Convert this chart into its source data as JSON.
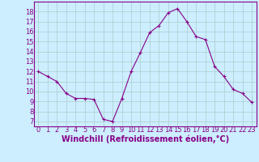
{
  "x": [
    0,
    1,
    2,
    3,
    4,
    5,
    6,
    7,
    8,
    9,
    10,
    11,
    12,
    13,
    14,
    15,
    16,
    17,
    18,
    19,
    20,
    21,
    22,
    23
  ],
  "y": [
    12,
    11.5,
    11,
    9.8,
    9.3,
    9.3,
    9.2,
    7.2,
    7.0,
    9.3,
    12.0,
    13.9,
    15.9,
    16.6,
    17.9,
    18.3,
    17.0,
    15.5,
    15.2,
    12.5,
    11.5,
    10.2,
    9.8,
    8.9
  ],
  "line_color": "#880088",
  "marker": "+",
  "marker_color": "#880088",
  "bg_color": "#cceeff",
  "grid_color": "#aacccc",
  "xlabel": "Windchill (Refroidissement éolien,°C)",
  "ylabel_ticks": [
    7,
    8,
    9,
    10,
    11,
    12,
    13,
    14,
    15,
    16,
    17,
    18
  ],
  "xlabel_ticks": [
    0,
    1,
    2,
    3,
    4,
    5,
    6,
    7,
    8,
    9,
    10,
    11,
    12,
    13,
    14,
    15,
    16,
    17,
    18,
    19,
    20,
    21,
    22,
    23
  ],
  "ylim": [
    6.5,
    19.0
  ],
  "xlim": [
    -0.5,
    23.5
  ],
  "xlabel_fontsize": 7,
  "tick_fontsize": 6,
  "axis_label_color": "#880088",
  "tick_label_color": "#880088",
  "border_color": "#880088",
  "line_width": 0.8,
  "marker_size": 3,
  "marker_edge_width": 0.8
}
